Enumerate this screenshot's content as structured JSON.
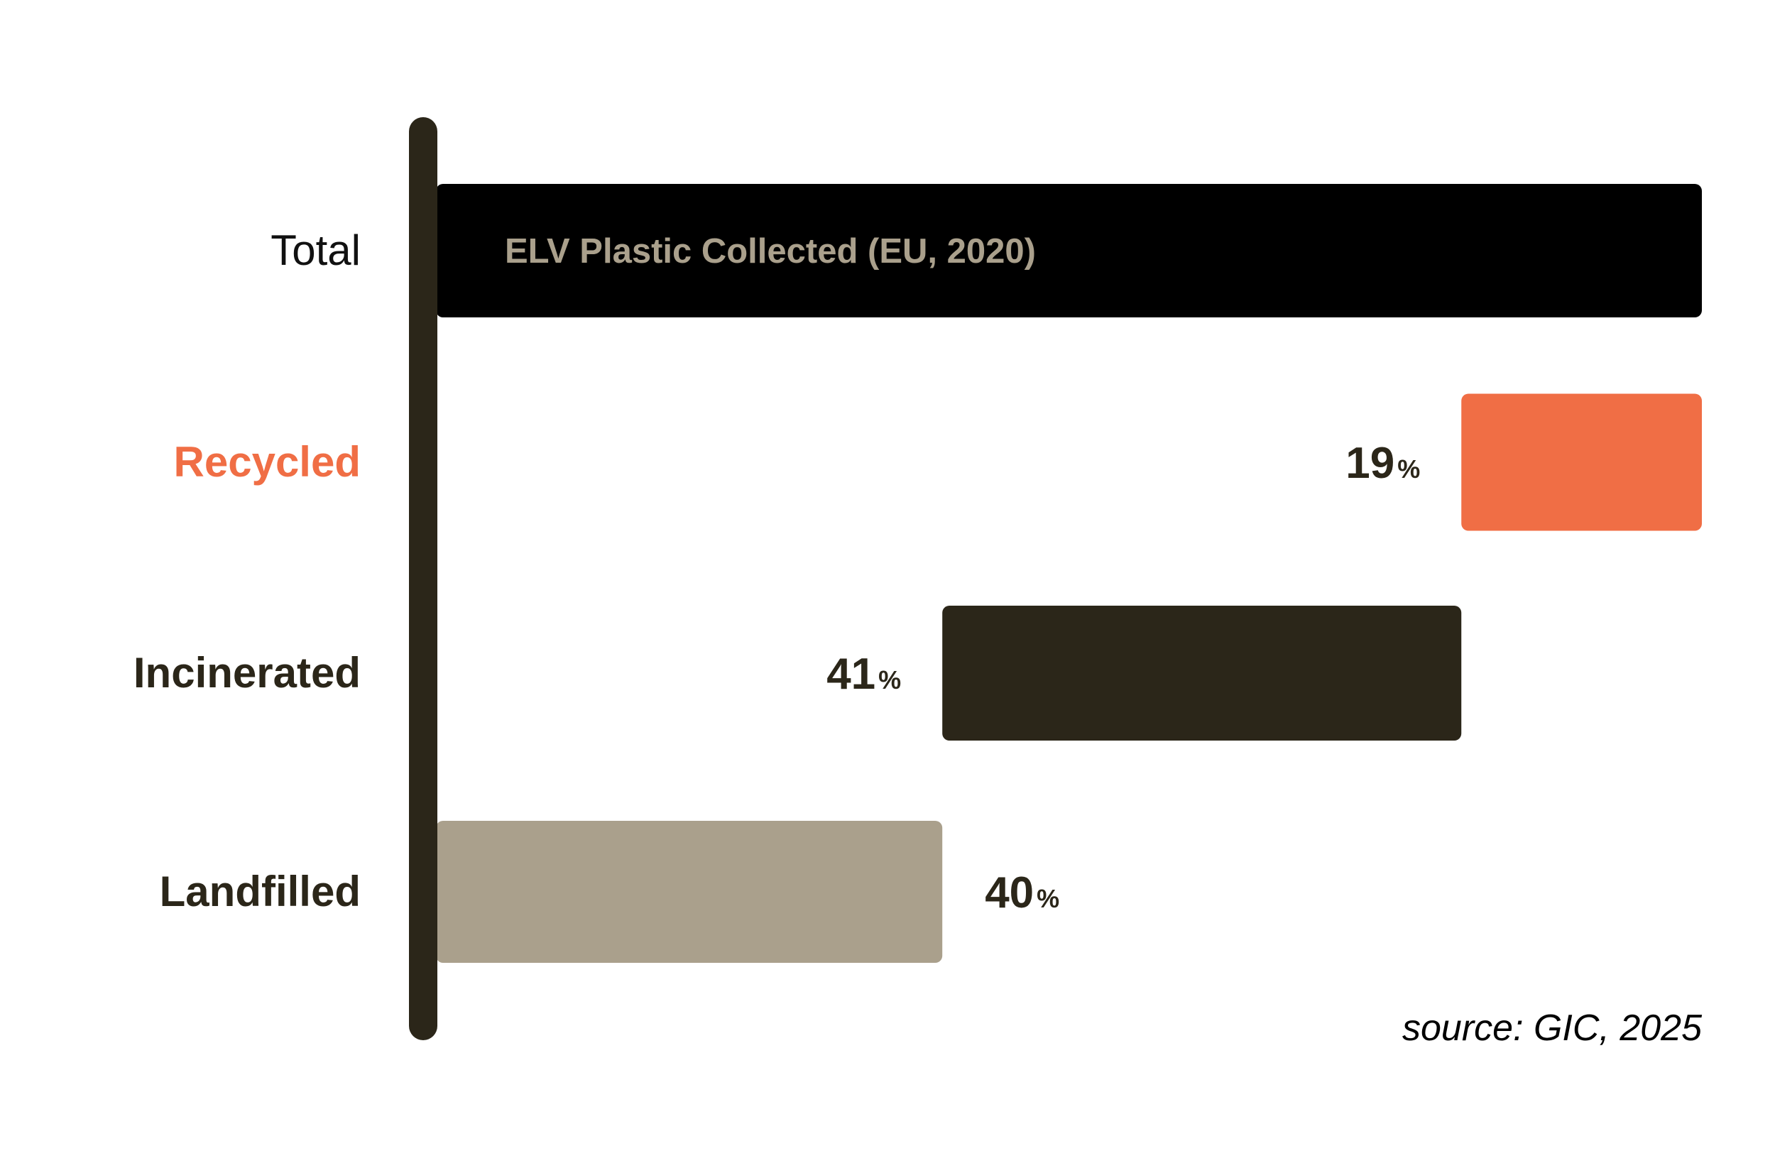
{
  "chart_data": {
    "type": "bar",
    "orientation": "horizontal",
    "subtype": "waterfall",
    "categories": [
      "Total",
      "Recycled",
      "Incinerated",
      "Landfilled"
    ],
    "values": [
      100,
      19,
      41,
      40
    ],
    "unit": "%",
    "bar_labels": {
      "Total": "ELV Plastic Collected (EU, 2020)"
    },
    "value_labels": [
      "",
      "19",
      "41",
      "40"
    ],
    "xlim": [
      0,
      100
    ],
    "title": "",
    "xlabel": "",
    "ylabel": "",
    "grid": false,
    "legend": "none",
    "source": "source: GIC, 2025"
  },
  "colors": {
    "axis": "#2b2619",
    "total_bar": "#000000",
    "total_bar_text": "#aaa08c",
    "recycled": "#f06e45",
    "incinerated": "#2b2619",
    "landfilled": "#aaa08c",
    "text_dark": "#2b2619",
    "text_total": "#111111",
    "recycled_label": "#f06e45"
  }
}
